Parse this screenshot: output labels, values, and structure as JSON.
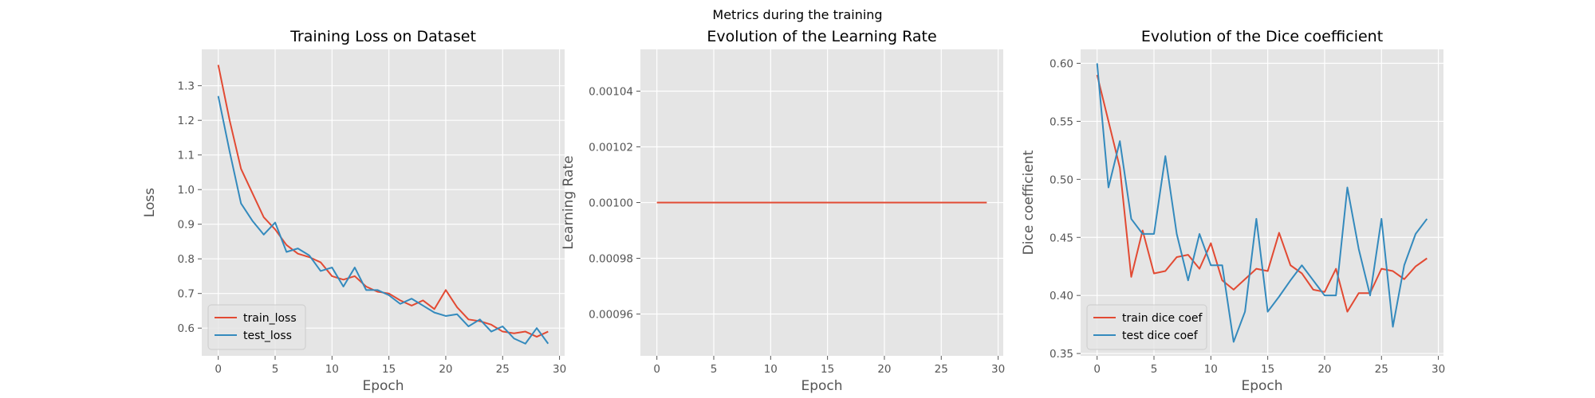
{
  "figure": {
    "suptitle": "Metrics during the training",
    "style": "ggplot",
    "colors": {
      "red": "#E24A33",
      "blue": "#348ABD",
      "panel_bg": "#E5E5E5",
      "grid": "#FFFFFF"
    }
  },
  "chart_data": [
    {
      "type": "line",
      "title": "Training Loss on Dataset",
      "xlabel": "Epoch",
      "ylabel": "Loss",
      "xlim": [
        -1.45,
        30.45
      ],
      "ylim": [
        0.52,
        1.405
      ],
      "xticks": [
        0,
        5,
        10,
        15,
        20,
        25,
        30
      ],
      "yticks": [
        0.6,
        0.7,
        0.8,
        0.9,
        1.0,
        1.1,
        1.2,
        1.3
      ],
      "ytick_labels": [
        "0.6",
        "0.7",
        "0.8",
        "0.9",
        "1.0",
        "1.1",
        "1.2",
        "1.3"
      ],
      "grid": true,
      "legend_position": "lower-left",
      "x": [
        0,
        1,
        2,
        3,
        4,
        5,
        6,
        7,
        8,
        9,
        10,
        11,
        12,
        13,
        14,
        15,
        16,
        17,
        18,
        19,
        20,
        21,
        22,
        23,
        24,
        25,
        26,
        27,
        28,
        29
      ],
      "series": [
        {
          "name": "train_loss",
          "color": "#E24A33",
          "values": [
            1.36,
            1.2,
            1.06,
            0.99,
            0.92,
            0.885,
            0.84,
            0.815,
            0.805,
            0.79,
            0.75,
            0.74,
            0.75,
            0.72,
            0.705,
            0.7,
            0.68,
            0.665,
            0.68,
            0.655,
            0.71,
            0.66,
            0.625,
            0.62,
            0.61,
            0.59,
            0.585,
            0.59,
            0.575,
            0.59
          ]
        },
        {
          "name": "test_loss",
          "color": "#348ABD",
          "values": [
            1.27,
            1.11,
            0.96,
            0.91,
            0.87,
            0.905,
            0.82,
            0.83,
            0.81,
            0.765,
            0.775,
            0.72,
            0.775,
            0.71,
            0.71,
            0.695,
            0.67,
            0.685,
            0.665,
            0.645,
            0.635,
            0.64,
            0.605,
            0.625,
            0.59,
            0.605,
            0.57,
            0.555,
            0.6,
            0.555
          ]
        }
      ]
    },
    {
      "type": "line",
      "title": "Evolution of the Learning Rate",
      "xlabel": "Epoch",
      "ylabel": "Learning Rate",
      "xlim": [
        -1.45,
        30.45
      ],
      "ylim": [
        0.000945,
        0.001055
      ],
      "xticks": [
        0,
        5,
        10,
        15,
        20,
        25,
        30
      ],
      "yticks": [
        0.00096,
        0.00098,
        0.001,
        0.00102,
        0.00104
      ],
      "ytick_labels": [
        "0.00096",
        "0.00098",
        "0.00100",
        "0.00102",
        "0.00104"
      ],
      "grid": true,
      "x": [
        0,
        1,
        2,
        3,
        4,
        5,
        6,
        7,
        8,
        9,
        10,
        11,
        12,
        13,
        14,
        15,
        16,
        17,
        18,
        19,
        20,
        21,
        22,
        23,
        24,
        25,
        26,
        27,
        28,
        29
      ],
      "series": [
        {
          "color": "#E24A33",
          "values": [
            0.001,
            0.001,
            0.001,
            0.001,
            0.001,
            0.001,
            0.001,
            0.001,
            0.001,
            0.001,
            0.001,
            0.001,
            0.001,
            0.001,
            0.001,
            0.001,
            0.001,
            0.001,
            0.001,
            0.001,
            0.001,
            0.001,
            0.001,
            0.001,
            0.001,
            0.001,
            0.001,
            0.001,
            0.001,
            0.001
          ]
        }
      ]
    },
    {
      "type": "line",
      "title": "Evolution of the Dice coefficient",
      "xlabel": "Epoch",
      "ylabel": "Dice coefficient",
      "xlim": [
        -1.45,
        30.45
      ],
      "ylim": [
        0.348,
        0.612
      ],
      "xticks": [
        0,
        5,
        10,
        15,
        20,
        25,
        30
      ],
      "yticks": [
        0.35,
        0.4,
        0.45,
        0.5,
        0.55,
        0.6
      ],
      "ytick_labels": [
        "0.35",
        "0.40",
        "0.45",
        "0.50",
        "0.55",
        "0.60"
      ],
      "grid": true,
      "legend_position": "lower-left",
      "x": [
        0,
        1,
        2,
        3,
        4,
        5,
        6,
        7,
        8,
        9,
        10,
        11,
        12,
        13,
        14,
        15,
        16,
        17,
        18,
        19,
        20,
        21,
        22,
        23,
        24,
        25,
        26,
        27,
        28,
        29
      ],
      "series": [
        {
          "name": "train dice coef",
          "color": "#E24A33",
          "values": [
            0.59,
            0.55,
            0.51,
            0.416,
            0.456,
            0.419,
            0.421,
            0.433,
            0.435,
            0.423,
            0.445,
            0.413,
            0.405,
            0.414,
            0.423,
            0.421,
            0.454,
            0.426,
            0.419,
            0.405,
            0.403,
            0.423,
            0.386,
            0.402,
            0.402,
            0.423,
            0.421,
            0.414,
            0.425,
            0.432
          ]
        },
        {
          "name": "test dice coef",
          "color": "#348ABD",
          "values": [
            0.6,
            0.493,
            0.533,
            0.466,
            0.453,
            0.453,
            0.52,
            0.453,
            0.413,
            0.453,
            0.426,
            0.426,
            0.36,
            0.386,
            0.466,
            0.386,
            0.399,
            0.413,
            0.426,
            0.413,
            0.4,
            0.4,
            0.493,
            0.44,
            0.4,
            0.466,
            0.373,
            0.426,
            0.453,
            0.466
          ]
        }
      ]
    }
  ]
}
